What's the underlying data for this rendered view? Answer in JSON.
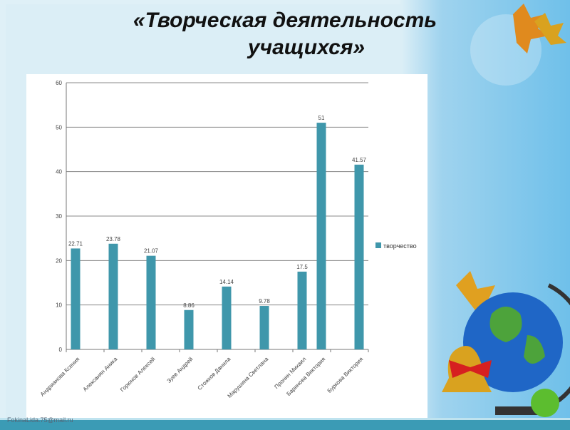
{
  "title": {
    "line1": "«Творческая деятельность",
    "line2": "учащихся»"
  },
  "footer": "FokinaLida.75@mail.ru",
  "chart_data": {
    "type": "bar",
    "categories": [
      "Андрианова Ксения",
      "Алексанян Аника",
      "Горюнов Алексей",
      "Зуев Андрей",
      "Стожков Данила",
      "Марушина Светлана",
      "Пронин Михаил",
      "Баринова Виктория",
      "Буркова Виктория"
    ],
    "series": [
      {
        "name": "творчество",
        "values": [
          22.71,
          23.78,
          21.07,
          8.86,
          14.14,
          9.78,
          17.5,
          51,
          41.57
        ],
        "labels": [
          "22.71",
          "23.78",
          "21.07",
          "8.86",
          "14.14",
          "9.78",
          "17.5",
          "51",
          "41.57"
        ]
      }
    ],
    "ylim": [
      0,
      60
    ],
    "yticks": [
      "0",
      "10",
      "20",
      "30",
      "40",
      "50",
      "60"
    ],
    "grid": true,
    "legend": "right",
    "color": "#3f97ab"
  }
}
